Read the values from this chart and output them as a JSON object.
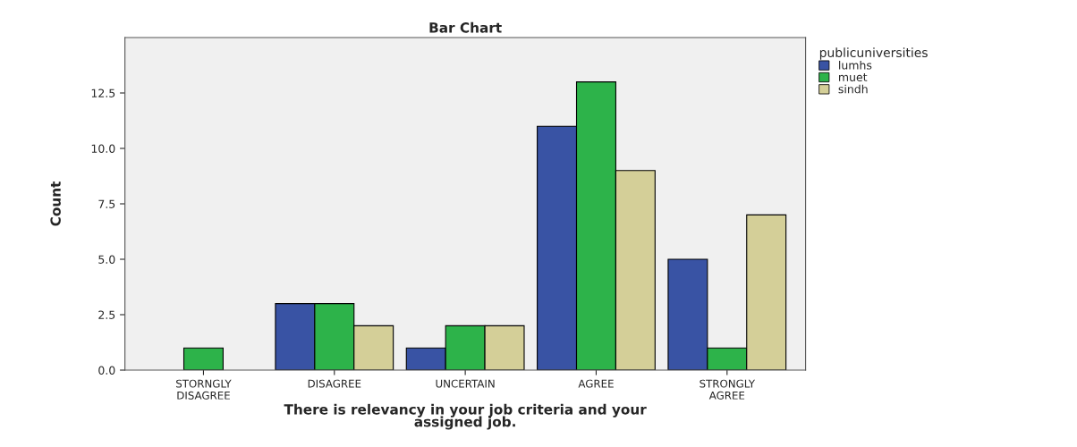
{
  "chart_data": {
    "type": "bar",
    "title": "Bar Chart",
    "xlabel": "There is relevancy in your job criteria and your\nassigned job.",
    "ylabel": "Count",
    "legend_title": "publicuniversities",
    "categories": [
      "STORNGLY\nDISAGREE",
      "DISAGREE",
      "UNCERTAIN",
      "AGREE",
      "STRONGLY\nAGREE"
    ],
    "series": [
      {
        "name": "lumhs",
        "color": "#3953a4",
        "values": [
          null,
          3,
          1,
          11,
          5
        ]
      },
      {
        "name": "muet",
        "color": "#2db34a",
        "values": [
          1,
          3,
          2,
          13,
          1
        ]
      },
      {
        "name": "sindh",
        "color": "#d4cf98",
        "values": [
          null,
          2,
          2,
          9,
          7
        ]
      }
    ],
    "ylim": [
      0,
      15
    ],
    "yticks": [
      {
        "value": 0,
        "label": "0.0"
      },
      {
        "value": 2.5,
        "label": "2.5"
      },
      {
        "value": 5,
        "label": "5.0"
      },
      {
        "value": 7.5,
        "label": "7.5"
      },
      {
        "value": 10,
        "label": "10.0"
      },
      {
        "value": 12.5,
        "label": "12.5"
      }
    ],
    "grid": false,
    "legend": "top right"
  }
}
